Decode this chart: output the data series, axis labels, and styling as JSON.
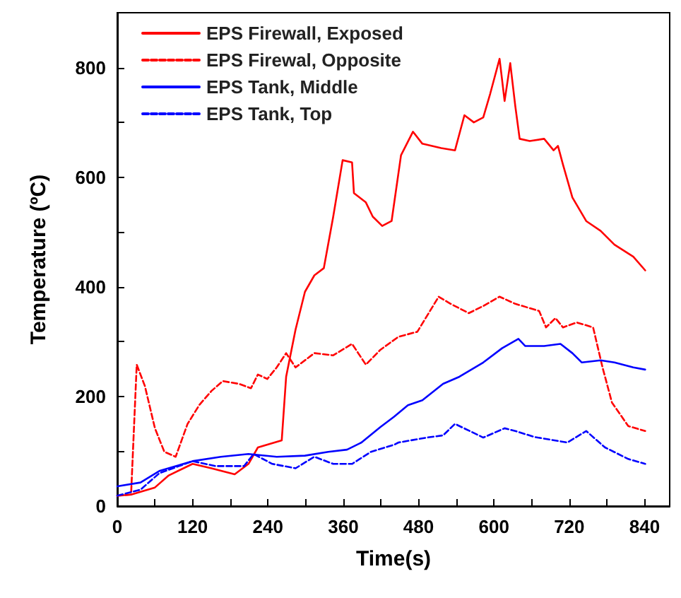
{
  "chart_data": {
    "type": "line",
    "xlabel": "Time(s)",
    "ylabel": "Temperature (ºC)",
    "xlim": [
      0,
      880
    ],
    "xticks": [
      0,
      {
        "value": 60,
        "label": null
      },
      120,
      {
        "value": 180,
        "label": null
      },
      240,
      {
        "value": 300,
        "label": null
      },
      360,
      {
        "value": 420,
        "label": null
      },
      480,
      {
        "value": 540,
        "label": null
      },
      600,
      {
        "value": 660,
        "label": null
      },
      720,
      {
        "value": 780,
        "label": null
      },
      840
    ],
    "ylim": [
      0,
      900
    ],
    "yticks": [
      0,
      {
        "value": 100,
        "label": null
      },
      200,
      {
        "value": 300,
        "label": null
      },
      400,
      {
        "value": 500,
        "label": null
      },
      600,
      {
        "value": 700,
        "label": null
      },
      800
    ],
    "grid": false,
    "legend": "top left",
    "marker": "none",
    "series": [
      {
        "name": "EPS Firewall, Exposed",
        "color": "#ff0000",
        "line_style": "solid",
        "x": [
          0,
          22,
          60,
          82,
          120,
          150,
          187,
          209,
          224,
          262,
          269,
          284,
          299,
          314,
          329,
          344,
          359,
          374,
          377,
          396,
          407,
          422,
          437,
          452,
          471,
          486,
          516,
          538,
          553,
          568,
          583,
          594,
          609,
          617,
          626,
          634,
          641,
          657,
          680,
          695,
          702,
          710,
          725,
          747,
          770,
          792,
          822,
          841
        ],
        "values": [
          19,
          21,
          34,
          56,
          77,
          69,
          58,
          77,
          107,
          120,
          236,
          322,
          391,
          421,
          434,
          528,
          631,
          627,
          571,
          554,
          528,
          511,
          520,
          640,
          683,
          661,
          653,
          649,
          713,
          700,
          709,
          752,
          816,
          739,
          808,
          730,
          670,
          666,
          670,
          649,
          657,
          623,
          563,
          520,
          502,
          477,
          455,
          430
        ]
      },
      {
        "name": "EPS Firewal, Opposite",
        "color": "#ff0000",
        "line_style": "dashed",
        "x": [
          0,
          22,
          31,
          44,
          60,
          75,
          93,
          112,
          131,
          150,
          168,
          194,
          213,
          224,
          239,
          254,
          269,
          284,
          314,
          344,
          374,
          396,
          419,
          448,
          478,
          512,
          531,
          560,
          583,
          609,
          634,
          672,
          683,
          698,
          710,
          732,
          758,
          773,
          788,
          814,
          841
        ],
        "values": [
          19,
          21,
          258,
          219,
          142,
          99,
          90,
          150,
          185,
          210,
          228,
          223,
          215,
          240,
          232,
          253,
          279,
          253,
          279,
          275,
          296,
          258,
          285,
          309,
          318,
          382,
          369,
          352,
          365,
          382,
          369,
          356,
          326,
          343,
          326,
          335,
          326,
          253,
          189,
          146,
          137
        ]
      },
      {
        "name": "EPS Tank, Middle",
        "color": "#0000ff",
        "line_style": "solid",
        "x": [
          0,
          37,
          67,
          93,
          120,
          165,
          209,
          254,
          299,
          336,
          366,
          389,
          419,
          441,
          463,
          486,
          519,
          545,
          583,
          613,
          639,
          650,
          680,
          706,
          725,
          740,
          770,
          792,
          822,
          841
        ],
        "values": [
          36,
          43,
          64,
          73,
          82,
          90,
          95,
          90,
          92,
          99,
          103,
          116,
          144,
          163,
          184,
          193,
          223,
          236,
          262,
          288,
          305,
          292,
          292,
          296,
          279,
          262,
          266,
          262,
          253,
          249
        ]
      },
      {
        "name": "EPS Tank, Top",
        "color": "#0000ff",
        "line_style": "dashed",
        "x": [
          0,
          37,
          67,
          120,
          157,
          202,
          217,
          247,
          284,
          314,
          344,
          374,
          404,
          441,
          448,
          493,
          519,
          538,
          583,
          617,
          634,
          665,
          717,
          747,
          777,
          814,
          841
        ],
        "values": [
          19,
          30,
          60,
          82,
          73,
          73,
          95,
          77,
          69,
          90,
          77,
          77,
          99,
          112,
          116,
          125,
          129,
          150,
          125,
          142,
          137,
          126,
          116,
          137,
          107,
          86,
          77
        ]
      }
    ]
  }
}
